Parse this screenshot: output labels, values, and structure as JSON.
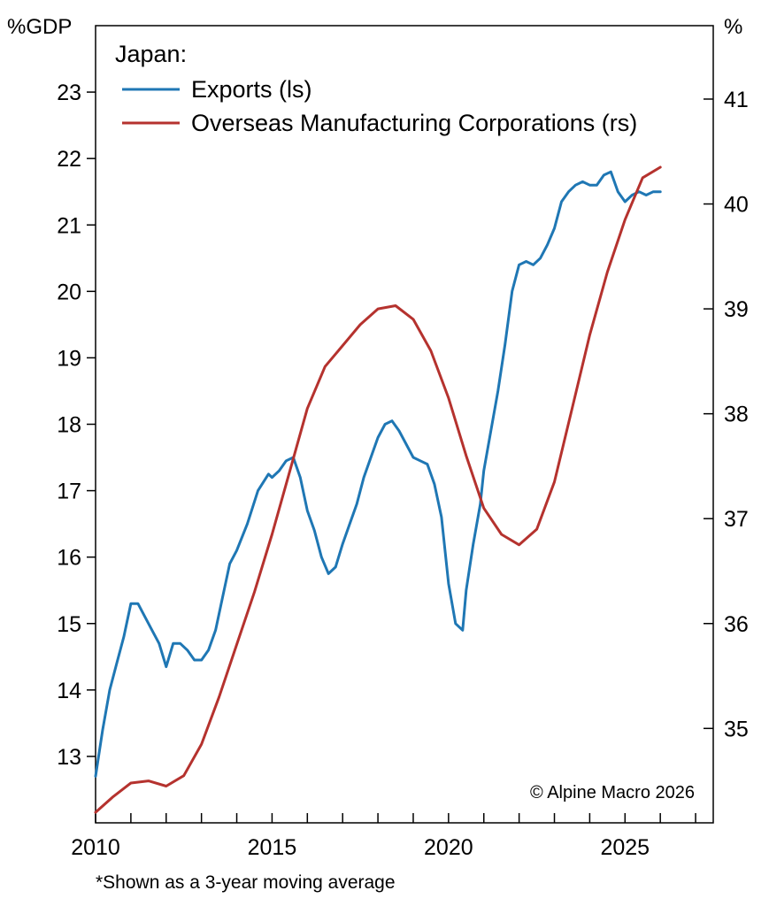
{
  "chart_data": {
    "type": "line",
    "title": "Japan:",
    "left_unit": "%GDP",
    "right_unit": "%",
    "credit": "© Alpine Macro 2026",
    "footnote": "*Shown as a 3-year moving average",
    "x_range": [
      2010,
      2027.5
    ],
    "x_ticks": [
      2010,
      2015,
      2020,
      2025
    ],
    "left_axis": {
      "range": [
        12.0,
        24.0
      ],
      "ticks": [
        13,
        14,
        15,
        16,
        17,
        18,
        19,
        20,
        21,
        22,
        23
      ]
    },
    "right_axis": {
      "range": [
        34.1,
        41.7
      ],
      "ticks": [
        35,
        36,
        37,
        38,
        39,
        40,
        41
      ]
    },
    "legend_position": "top-left",
    "grid": false,
    "series": [
      {
        "name": "Exports (ls)",
        "axis": "left",
        "color": "#1f77b4",
        "x": [
          2010.0,
          2010.2,
          2010.4,
          2010.6,
          2010.8,
          2011.0,
          2011.2,
          2011.4,
          2011.6,
          2011.8,
          2012.0,
          2012.2,
          2012.4,
          2012.6,
          2012.8,
          2013.0,
          2013.2,
          2013.4,
          2013.6,
          2013.8,
          2014.0,
          2014.3,
          2014.6,
          2014.9,
          2015.0,
          2015.2,
          2015.4,
          2015.6,
          2015.8,
          2016.0,
          2016.2,
          2016.4,
          2016.6,
          2016.8,
          2017.0,
          2017.2,
          2017.4,
          2017.6,
          2017.8,
          2018.0,
          2018.2,
          2018.4,
          2018.6,
          2018.8,
          2019.0,
          2019.2,
          2019.4,
          2019.6,
          2019.8,
          2020.0,
          2020.2,
          2020.4,
          2020.5,
          2020.7,
          2020.9,
          2021.0,
          2021.2,
          2021.4,
          2021.6,
          2021.8,
          2022.0,
          2022.2,
          2022.4,
          2022.6,
          2022.8,
          2023.0,
          2023.2,
          2023.4,
          2023.6,
          2023.8,
          2024.0,
          2024.2,
          2024.4,
          2024.6,
          2024.8,
          2025.0,
          2025.2,
          2025.4,
          2025.6,
          2025.8,
          2026.0
        ],
        "values": [
          12.7,
          13.4,
          14.0,
          14.4,
          14.8,
          15.3,
          15.3,
          15.1,
          14.9,
          14.7,
          14.35,
          14.7,
          14.7,
          14.6,
          14.45,
          14.45,
          14.6,
          14.9,
          15.4,
          15.9,
          16.1,
          16.5,
          17.0,
          17.25,
          17.2,
          17.3,
          17.45,
          17.5,
          17.2,
          16.7,
          16.4,
          16.0,
          15.75,
          15.85,
          16.2,
          16.5,
          16.8,
          17.2,
          17.5,
          17.8,
          18.0,
          18.05,
          17.9,
          17.7,
          17.5,
          17.45,
          17.4,
          17.1,
          16.6,
          15.6,
          15.0,
          14.9,
          15.5,
          16.2,
          16.8,
          17.3,
          17.9,
          18.5,
          19.2,
          20.0,
          20.4,
          20.45,
          20.4,
          20.5,
          20.7,
          20.95,
          21.35,
          21.5,
          21.6,
          21.65,
          21.6,
          21.6,
          21.75,
          21.8,
          21.5,
          21.35,
          21.45,
          21.5,
          21.45,
          21.5,
          21.5
        ]
      },
      {
        "name": "Overseas Manufacturing Corporations (rs)",
        "axis": "right",
        "color": "#b5322e",
        "x": [
          2010.0,
          2010.5,
          2011.0,
          2011.5,
          2012.0,
          2012.5,
          2013.0,
          2013.5,
          2014.0,
          2014.5,
          2015.0,
          2015.5,
          2016.0,
          2016.5,
          2017.0,
          2017.5,
          2018.0,
          2018.5,
          2019.0,
          2019.5,
          2020.0,
          2020.5,
          2021.0,
          2021.5,
          2022.0,
          2022.5,
          2023.0,
          2023.5,
          2024.0,
          2024.5,
          2025.0,
          2025.5,
          2026.0
        ],
        "values": [
          34.2,
          34.35,
          34.48,
          34.5,
          34.45,
          34.55,
          34.85,
          35.3,
          35.8,
          36.3,
          36.85,
          37.45,
          38.05,
          38.45,
          38.65,
          38.85,
          39.0,
          39.03,
          38.9,
          38.6,
          38.15,
          37.6,
          37.1,
          36.85,
          36.75,
          36.9,
          37.35,
          38.05,
          38.75,
          39.35,
          39.85,
          40.25,
          40.35
        ]
      }
    ]
  }
}
